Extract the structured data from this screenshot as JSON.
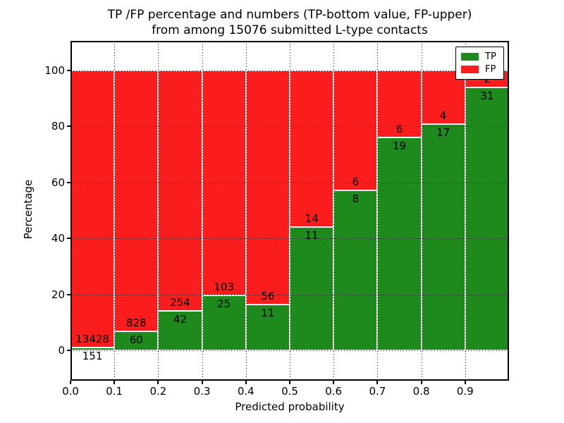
{
  "chart_data": {
    "type": "bar",
    "stacked": true,
    "title_line1": "TP /FP percentage and numbers (TP-bottom value, FP-upper)",
    "title_line2": "from among 15076 submitted L-type contacts",
    "xlabel": "Predicted probability",
    "ylabel": "Percentage",
    "x_tick_labels": [
      "0.0",
      "0.1",
      "0.2",
      "0.3",
      "0.4",
      "0.5",
      "0.6",
      "0.7",
      "0.8",
      "0.9"
    ],
    "y_ticks": [
      0,
      20,
      40,
      60,
      80,
      100
    ],
    "y_axis_range_pct": [
      0,
      100
    ],
    "grid": "dotted black, horizontal and vertical",
    "total_contacts": 15076,
    "bar_unit": "percent of bin (TP% bottom green, FP% top red), labels show raw counts",
    "bins": [
      {
        "x_range": "0.0-0.1",
        "tp": 151,
        "fp": 13428
      },
      {
        "x_range": "0.1-0.2",
        "tp": 60,
        "fp": 828
      },
      {
        "x_range": "0.2-0.3",
        "tp": 42,
        "fp": 254
      },
      {
        "x_range": "0.3-0.4",
        "tp": 25,
        "fp": 103
      },
      {
        "x_range": "0.4-0.5",
        "tp": 11,
        "fp": 56
      },
      {
        "x_range": "0.5-0.6",
        "tp": 11,
        "fp": 14
      },
      {
        "x_range": "0.6-0.7",
        "tp": 8,
        "fp": 6
      },
      {
        "x_range": "0.7-0.8",
        "tp": 19,
        "fp": 6
      },
      {
        "x_range": "0.8-0.9",
        "tp": 17,
        "fp": 4
      },
      {
        "x_range": "0.9-1.0",
        "tp": 31,
        "fp": 2
      }
    ],
    "legend": {
      "position": "upper right",
      "entries": [
        {
          "label": "TP",
          "color": "#1e8a1e"
        },
        {
          "label": "FP",
          "color": "#fb1d1d"
        }
      ]
    }
  }
}
